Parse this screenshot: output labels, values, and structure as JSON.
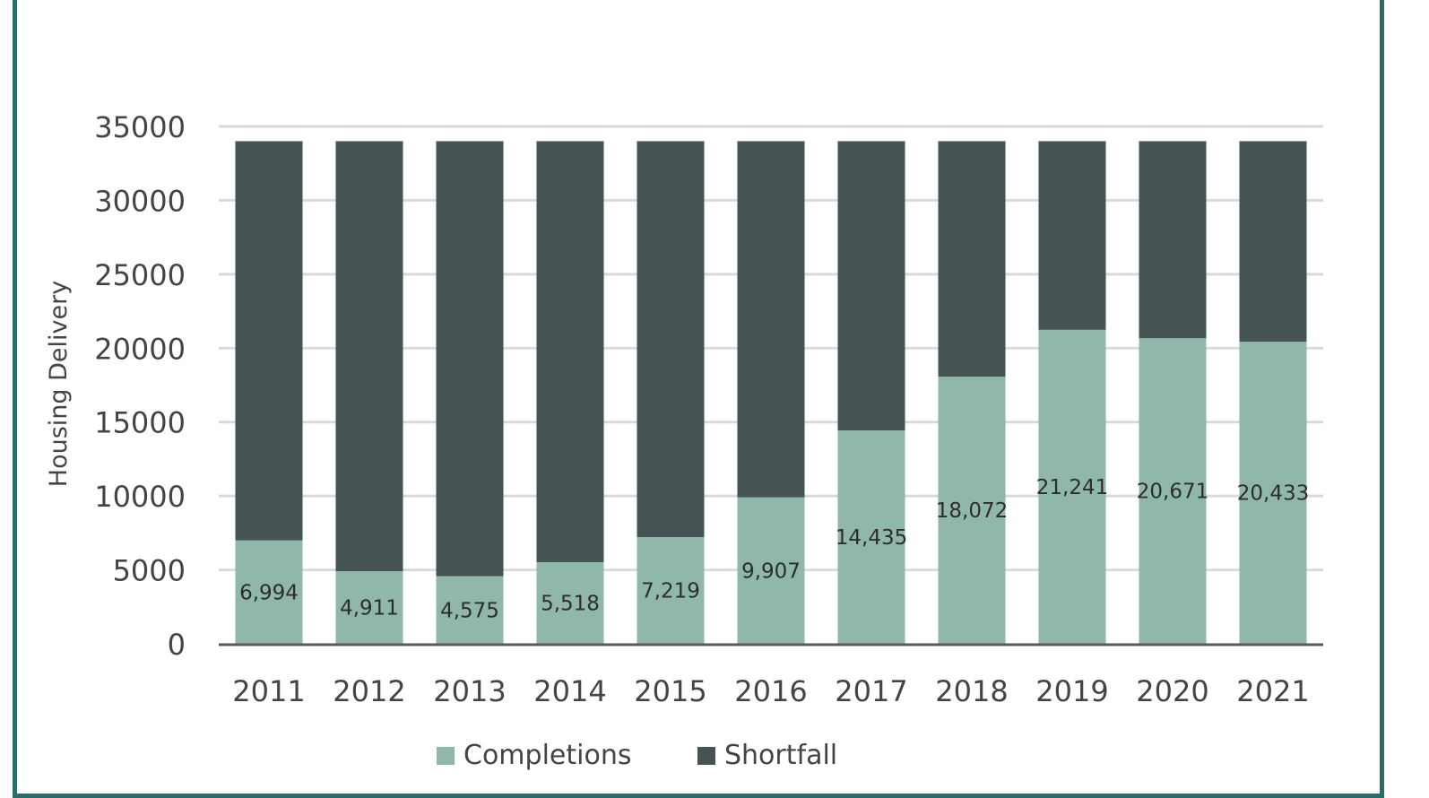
{
  "chart_data": {
    "type": "bar",
    "stacked": true,
    "categories": [
      "2011",
      "2012",
      "2013",
      "2014",
      "2015",
      "2016",
      "2017",
      "2018",
      "2019",
      "2020",
      "2021"
    ],
    "series": [
      {
        "name": "Completions",
        "color": "#8fb8aa",
        "values": [
          6994,
          4911,
          4575,
          5518,
          7219,
          9907,
          14435,
          18072,
          21241,
          20671,
          20433
        ],
        "labels": [
          "6,994",
          "4,911",
          "4,575",
          "5,518",
          "7,219",
          "9,907",
          "14,435",
          "18,072",
          "21,241",
          "20,671",
          "20,433"
        ]
      },
      {
        "name": "Shortfall",
        "color": "#465355",
        "values": [
          27006,
          29089,
          29425,
          28482,
          26781,
          24093,
          19565,
          15928,
          12759,
          13329,
          13567
        ]
      }
    ],
    "title": "",
    "xlabel": "",
    "ylabel": "Housing Delivery",
    "ylim": [
      0,
      35000
    ],
    "yticks": [
      "0",
      "5000",
      "10000",
      "15000",
      "20000",
      "25000",
      "30000",
      "35000"
    ],
    "grid": true,
    "legend": "bottom"
  },
  "colors": {
    "frame": "#2a6b6b",
    "grid": "#d9d9d9",
    "axis": "#595959"
  }
}
